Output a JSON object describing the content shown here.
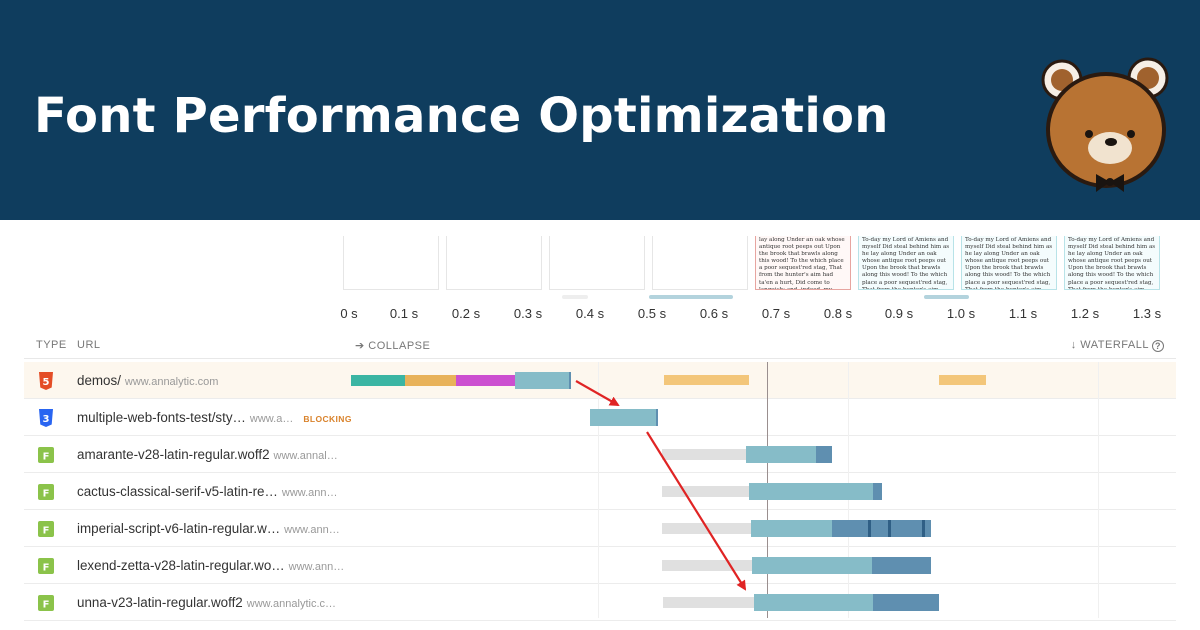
{
  "banner": {
    "title": "Font Performance Optimization",
    "background": "#0f3d5e",
    "logo_icon": "bear-mascot-icon"
  },
  "filmstrip": {
    "frames": [
      {
        "text": ""
      },
      {
        "text": ""
      },
      {
        "text": ""
      },
      {
        "text": ""
      },
      {
        "text": "lay along Under an oak whose antique root peeps out Upon the brook that brawls along this wood! To the which place a poor sequest'red stag, That from the hunter's aim had ta'en a hurt, Did come to languish; and, indeed, my lord, The wretched animal heav'd forth such groans That their"
      },
      {
        "text": "To-day my Lord of Amiens and myself Did steal behind him as he lay along Under an oak whose antique root peeps out Upon the brook that brawls along this wood! To the which place a poor sequest'red stag, That from the hunter's aim had ta'en a hurt, Did come to languish; and, indeed,"
      },
      {
        "text": "To-day my Lord of Amiens and myself Did steal behind him as he lay along Under an oak whose antique root peeps out Upon the brook that brawls along this wood! To the which place a poor sequest'red stag, That from the hunter's aim had ta'en a hurt, Did come to languish; and, indeed,"
      },
      {
        "text": "To-day my Lord of Amiens and myself Did steal behind him as he lay along Under an oak whose antique root peeps out Upon the brook that brawls along this wood! To the which place a poor sequest'red stag, That from the hunter's aim had ta'en a hurt, Did come to languish; and, indeed,"
      }
    ]
  },
  "timeline": {
    "ticks": [
      "0 s",
      "0.1 s",
      "0.2 s",
      "0.3 s",
      "0.4 s",
      "0.5 s",
      "0.6 s",
      "0.7 s",
      "0.8 s",
      "0.9 s",
      "1.0 s",
      "1.1 s",
      "1.2 s",
      "1.3 s"
    ]
  },
  "table": {
    "col_type": "TYPE",
    "col_url": "URL",
    "collapse_label": "➔ COLLAPSE",
    "waterfall_label": "↓ WATERFALL",
    "help_glyph": "?",
    "rows": [
      {
        "type": "html",
        "icon_text": "5",
        "url": "demos/",
        "domain": "www.annalytic.com",
        "badge": ""
      },
      {
        "type": "css",
        "icon_text": "3",
        "url": "multiple-web-fonts-test/sty…",
        "domain": "www.a…",
        "badge": "BLOCKING"
      },
      {
        "type": "font",
        "icon_text": "F",
        "url": "amarante-v28-latin-regular.woff2",
        "domain": "www.annal…",
        "badge": ""
      },
      {
        "type": "font",
        "icon_text": "F",
        "url": "cactus-classical-serif-v5-latin-re…",
        "domain": "www.ann…",
        "badge": ""
      },
      {
        "type": "font",
        "icon_text": "F",
        "url": "imperial-script-v6-latin-regular.w…",
        "domain": "www.ann…",
        "badge": ""
      },
      {
        "type": "font",
        "icon_text": "F",
        "url": "lexend-zetta-v28-latin-regular.wo…",
        "domain": "www.ann…",
        "badge": ""
      },
      {
        "type": "font",
        "icon_text": "F",
        "url": "unna-v23-latin-regular.woff2",
        "domain": "www.annalytic.c…",
        "badge": ""
      }
    ]
  },
  "colors": {
    "html_icon": "#e44d26",
    "css_icon": "#2965f1",
    "font_icon": "#8bc34a",
    "request_wait": "#e0e0e0",
    "download": "#86bcc8",
    "download_dark": "#5f8fb0",
    "dns": "#3bb5a3",
    "connect": "#e8b25a",
    "ssl": "#cc4fd0",
    "arrow": "#e02424"
  }
}
